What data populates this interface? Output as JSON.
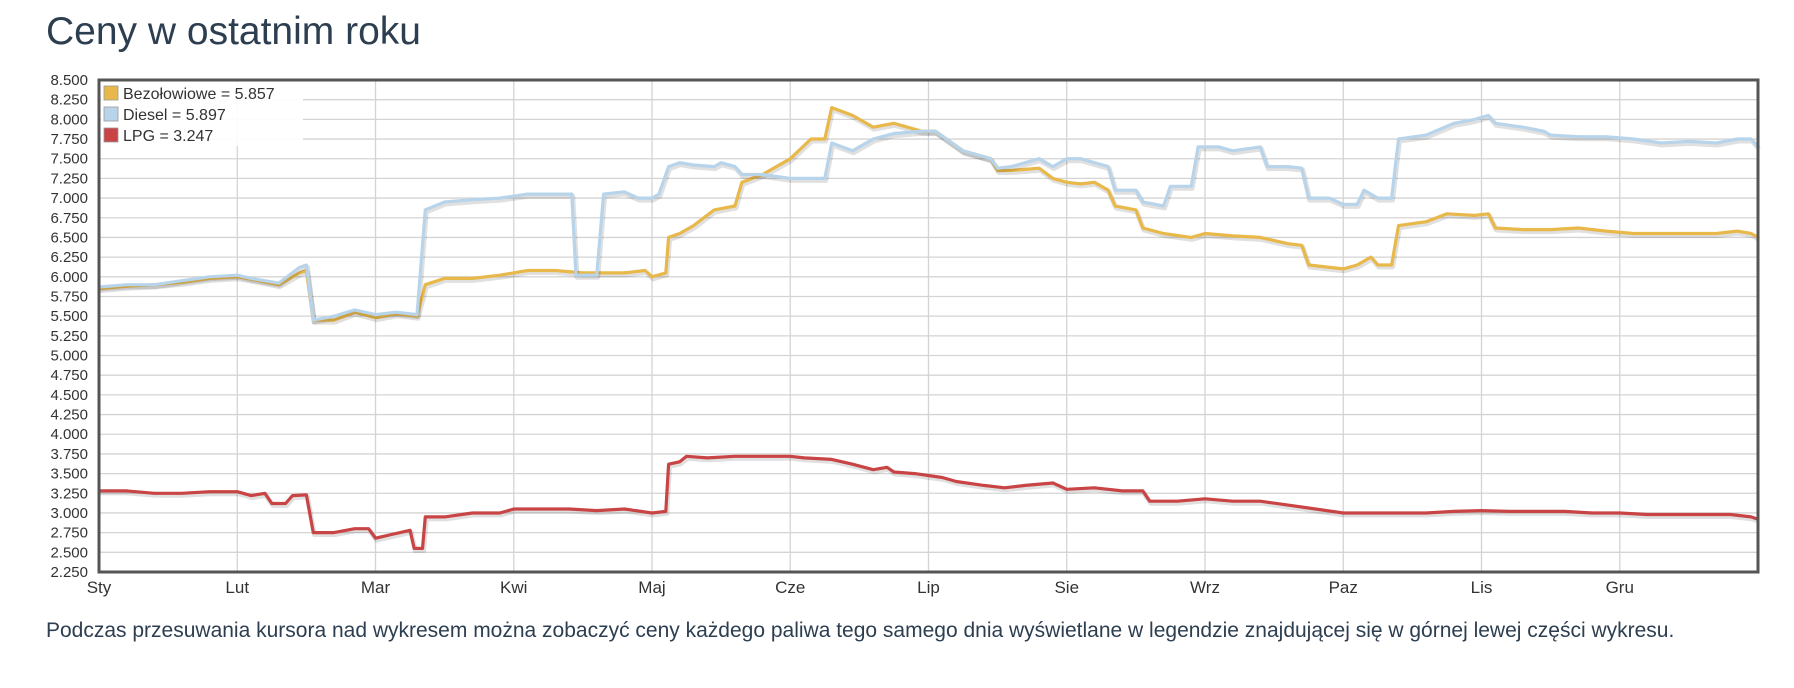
{
  "page": {
    "title": "Ceny w ostatnim roku",
    "caption": "Podczas przesuwania kursora nad wykresem można zobaczyć ceny każdego paliwa tego samego dnia wyświetlane w legendzie znajdującej się w górnej lewej części wykresu."
  },
  "chart_data": {
    "type": "line",
    "title": "",
    "xlabel": "",
    "ylabel": "",
    "xlim": [
      0,
      12
    ],
    "ylim": [
      2.25,
      8.5
    ],
    "y_ticks": [
      "8.500",
      "8.250",
      "8.000",
      "7.750",
      "7.500",
      "7.250",
      "7.000",
      "6.750",
      "6.500",
      "6.250",
      "6.000",
      "5.750",
      "5.500",
      "5.250",
      "5.000",
      "4.750",
      "4.500",
      "4.250",
      "4.000",
      "3.750",
      "3.500",
      "3.250",
      "3.000",
      "2.750",
      "2.500",
      "2.250"
    ],
    "month_ticks": [
      "Sty",
      "Lut",
      "Mar",
      "Kwi",
      "Maj",
      "Cze",
      "Lip",
      "Sie",
      "Wrz",
      "Paz",
      "Lis",
      "Gru"
    ],
    "grid": true,
    "legend_position": "top-left",
    "legend": [
      {
        "label": "Bezołowiowe = 5.857",
        "color": "#e8b84a"
      },
      {
        "label": "Diesel = 5.897",
        "color": "#b8d4ea"
      },
      {
        "label": "LPG = 3.247",
        "color": "#c94444"
      }
    ],
    "series": [
      {
        "name": "Bezołowiowe",
        "color": "#e8b84a",
        "points": [
          [
            0,
            5.85
          ],
          [
            0.2,
            5.88
          ],
          [
            0.4,
            5.9
          ],
          [
            0.6,
            5.93
          ],
          [
            0.8,
            5.98
          ],
          [
            1.0,
            6.0
          ],
          [
            1.1,
            5.97
          ],
          [
            1.3,
            5.9
          ],
          [
            1.45,
            6.05
          ],
          [
            1.5,
            6.08
          ],
          [
            1.55,
            5.45
          ],
          [
            1.7,
            5.45
          ],
          [
            1.85,
            5.55
          ],
          [
            2.0,
            5.48
          ],
          [
            2.15,
            5.53
          ],
          [
            2.3,
            5.5
          ],
          [
            2.36,
            5.9
          ],
          [
            2.5,
            5.98
          ],
          [
            2.7,
            5.98
          ],
          [
            2.9,
            6.02
          ],
          [
            3.1,
            6.08
          ],
          [
            3.3,
            6.08
          ],
          [
            3.5,
            6.05
          ],
          [
            3.8,
            6.05
          ],
          [
            3.95,
            6.08
          ],
          [
            4.0,
            6.0
          ],
          [
            4.1,
            6.05
          ],
          [
            4.12,
            6.5
          ],
          [
            4.2,
            6.55
          ],
          [
            4.3,
            6.65
          ],
          [
            4.45,
            6.85
          ],
          [
            4.6,
            6.9
          ],
          [
            4.65,
            7.2
          ],
          [
            4.8,
            7.3
          ],
          [
            5.0,
            7.5
          ],
          [
            5.15,
            7.75
          ],
          [
            5.25,
            7.75
          ],
          [
            5.3,
            8.15
          ],
          [
            5.45,
            8.05
          ],
          [
            5.6,
            7.9
          ],
          [
            5.75,
            7.95
          ],
          [
            5.95,
            7.85
          ],
          [
            6.05,
            7.85
          ],
          [
            6.25,
            7.6
          ],
          [
            6.45,
            7.5
          ],
          [
            6.5,
            7.35
          ],
          [
            6.6,
            7.35
          ],
          [
            6.8,
            7.38
          ],
          [
            6.9,
            7.25
          ],
          [
            7.0,
            7.2
          ],
          [
            7.1,
            7.18
          ],
          [
            7.2,
            7.2
          ],
          [
            7.3,
            7.1
          ],
          [
            7.35,
            6.9
          ],
          [
            7.5,
            6.85
          ],
          [
            7.55,
            6.62
          ],
          [
            7.7,
            6.55
          ],
          [
            7.9,
            6.5
          ],
          [
            8.0,
            6.55
          ],
          [
            8.2,
            6.52
          ],
          [
            8.4,
            6.5
          ],
          [
            8.6,
            6.42
          ],
          [
            8.7,
            6.4
          ],
          [
            8.75,
            6.15
          ],
          [
            9.0,
            6.1
          ],
          [
            9.1,
            6.15
          ],
          [
            9.2,
            6.25
          ],
          [
            9.25,
            6.15
          ],
          [
            9.35,
            6.15
          ],
          [
            9.4,
            6.65
          ],
          [
            9.6,
            6.7
          ],
          [
            9.75,
            6.8
          ],
          [
            9.95,
            6.78
          ],
          [
            10.05,
            6.8
          ],
          [
            10.1,
            6.62
          ],
          [
            10.3,
            6.6
          ],
          [
            10.5,
            6.6
          ],
          [
            10.7,
            6.62
          ],
          [
            10.9,
            6.58
          ],
          [
            11.1,
            6.55
          ],
          [
            11.3,
            6.55
          ],
          [
            11.5,
            6.55
          ],
          [
            11.7,
            6.55
          ],
          [
            11.85,
            6.58
          ],
          [
            11.95,
            6.55
          ],
          [
            12.0,
            6.5
          ]
        ]
      },
      {
        "name": "Diesel",
        "color": "#b8d4ea",
        "points": [
          [
            0,
            5.87
          ],
          [
            0.2,
            5.9
          ],
          [
            0.4,
            5.9
          ],
          [
            0.6,
            5.95
          ],
          [
            0.8,
            6.0
          ],
          [
            1.0,
            6.02
          ],
          [
            1.1,
            5.98
          ],
          [
            1.3,
            5.92
          ],
          [
            1.45,
            6.12
          ],
          [
            1.5,
            6.15
          ],
          [
            1.55,
            5.45
          ],
          [
            1.7,
            5.5
          ],
          [
            1.85,
            5.58
          ],
          [
            2.0,
            5.52
          ],
          [
            2.15,
            5.55
          ],
          [
            2.3,
            5.52
          ],
          [
            2.36,
            6.85
          ],
          [
            2.5,
            6.95
          ],
          [
            2.7,
            6.98
          ],
          [
            2.9,
            7.0
          ],
          [
            3.1,
            7.05
          ],
          [
            3.3,
            7.05
          ],
          [
            3.42,
            7.05
          ],
          [
            3.45,
            6.02
          ],
          [
            3.6,
            6.02
          ],
          [
            3.65,
            7.05
          ],
          [
            3.8,
            7.08
          ],
          [
            3.9,
            7.0
          ],
          [
            4.0,
            7.0
          ],
          [
            4.05,
            7.05
          ],
          [
            4.12,
            7.4
          ],
          [
            4.2,
            7.45
          ],
          [
            4.3,
            7.42
          ],
          [
            4.45,
            7.4
          ],
          [
            4.5,
            7.45
          ],
          [
            4.6,
            7.4
          ],
          [
            4.65,
            7.3
          ],
          [
            4.8,
            7.3
          ],
          [
            5.0,
            7.25
          ],
          [
            5.15,
            7.25
          ],
          [
            5.25,
            7.25
          ],
          [
            5.3,
            7.7
          ],
          [
            5.45,
            7.6
          ],
          [
            5.6,
            7.75
          ],
          [
            5.75,
            7.82
          ],
          [
            5.95,
            7.85
          ],
          [
            6.05,
            7.85
          ],
          [
            6.25,
            7.6
          ],
          [
            6.45,
            7.5
          ],
          [
            6.5,
            7.38
          ],
          [
            6.6,
            7.4
          ],
          [
            6.8,
            7.5
          ],
          [
            6.9,
            7.4
          ],
          [
            7.0,
            7.5
          ],
          [
            7.1,
            7.5
          ],
          [
            7.2,
            7.45
          ],
          [
            7.3,
            7.4
          ],
          [
            7.35,
            7.1
          ],
          [
            7.5,
            7.1
          ],
          [
            7.55,
            6.95
          ],
          [
            7.7,
            6.9
          ],
          [
            7.75,
            7.15
          ],
          [
            7.9,
            7.15
          ],
          [
            7.95,
            7.65
          ],
          [
            8.1,
            7.65
          ],
          [
            8.2,
            7.6
          ],
          [
            8.4,
            7.65
          ],
          [
            8.45,
            7.4
          ],
          [
            8.6,
            7.4
          ],
          [
            8.7,
            7.38
          ],
          [
            8.75,
            7.0
          ],
          [
            8.9,
            7.0
          ],
          [
            9.0,
            6.92
          ],
          [
            9.1,
            6.92
          ],
          [
            9.15,
            7.1
          ],
          [
            9.25,
            7.0
          ],
          [
            9.35,
            7.0
          ],
          [
            9.4,
            7.75
          ],
          [
            9.6,
            7.8
          ],
          [
            9.8,
            7.95
          ],
          [
            9.95,
            8.0
          ],
          [
            10.05,
            8.05
          ],
          [
            10.1,
            7.95
          ],
          [
            10.3,
            7.9
          ],
          [
            10.45,
            7.85
          ],
          [
            10.5,
            7.8
          ],
          [
            10.7,
            7.78
          ],
          [
            10.9,
            7.78
          ],
          [
            11.1,
            7.75
          ],
          [
            11.3,
            7.7
          ],
          [
            11.5,
            7.72
          ],
          [
            11.7,
            7.7
          ],
          [
            11.85,
            7.75
          ],
          [
            11.95,
            7.75
          ],
          [
            12.0,
            7.65
          ]
        ]
      },
      {
        "name": "LPG",
        "color": "#c94444",
        "points": [
          [
            0,
            3.28
          ],
          [
            0.2,
            3.28
          ],
          [
            0.4,
            3.25
          ],
          [
            0.6,
            3.25
          ],
          [
            0.8,
            3.27
          ],
          [
            1.0,
            3.27
          ],
          [
            1.1,
            3.22
          ],
          [
            1.2,
            3.25
          ],
          [
            1.25,
            3.12
          ],
          [
            1.35,
            3.12
          ],
          [
            1.4,
            3.22
          ],
          [
            1.5,
            3.23
          ],
          [
            1.55,
            2.75
          ],
          [
            1.7,
            2.75
          ],
          [
            1.85,
            2.8
          ],
          [
            1.95,
            2.8
          ],
          [
            2.0,
            2.68
          ],
          [
            2.1,
            2.72
          ],
          [
            2.25,
            2.78
          ],
          [
            2.28,
            2.55
          ],
          [
            2.34,
            2.55
          ],
          [
            2.36,
            2.95
          ],
          [
            2.5,
            2.95
          ],
          [
            2.7,
            3.0
          ],
          [
            2.9,
            3.0
          ],
          [
            3.0,
            3.05
          ],
          [
            3.2,
            3.05
          ],
          [
            3.4,
            3.05
          ],
          [
            3.6,
            3.03
          ],
          [
            3.8,
            3.05
          ],
          [
            4.0,
            3.0
          ],
          [
            4.1,
            3.02
          ],
          [
            4.12,
            3.62
          ],
          [
            4.2,
            3.65
          ],
          [
            4.25,
            3.72
          ],
          [
            4.4,
            3.7
          ],
          [
            4.6,
            3.72
          ],
          [
            4.8,
            3.72
          ],
          [
            5.0,
            3.72
          ],
          [
            5.1,
            3.7
          ],
          [
            5.3,
            3.68
          ],
          [
            5.45,
            3.62
          ],
          [
            5.6,
            3.55
          ],
          [
            5.7,
            3.58
          ],
          [
            5.75,
            3.52
          ],
          [
            5.9,
            3.5
          ],
          [
            6.1,
            3.45
          ],
          [
            6.2,
            3.4
          ],
          [
            6.4,
            3.35
          ],
          [
            6.55,
            3.32
          ],
          [
            6.7,
            3.35
          ],
          [
            6.9,
            3.38
          ],
          [
            7.0,
            3.3
          ],
          [
            7.2,
            3.32
          ],
          [
            7.4,
            3.28
          ],
          [
            7.55,
            3.28
          ],
          [
            7.6,
            3.15
          ],
          [
            7.8,
            3.15
          ],
          [
            8.0,
            3.18
          ],
          [
            8.2,
            3.15
          ],
          [
            8.4,
            3.15
          ],
          [
            8.6,
            3.1
          ],
          [
            8.8,
            3.05
          ],
          [
            9.0,
            3.0
          ],
          [
            9.2,
            3.0
          ],
          [
            9.4,
            3.0
          ],
          [
            9.6,
            3.0
          ],
          [
            9.8,
            3.02
          ],
          [
            10.0,
            3.03
          ],
          [
            10.2,
            3.02
          ],
          [
            10.4,
            3.02
          ],
          [
            10.6,
            3.02
          ],
          [
            10.8,
            3.0
          ],
          [
            11.0,
            3.0
          ],
          [
            11.2,
            2.98
          ],
          [
            11.4,
            2.98
          ],
          [
            11.6,
            2.98
          ],
          [
            11.8,
            2.98
          ],
          [
            11.95,
            2.95
          ],
          [
            12.0,
            2.92
          ]
        ]
      }
    ]
  }
}
